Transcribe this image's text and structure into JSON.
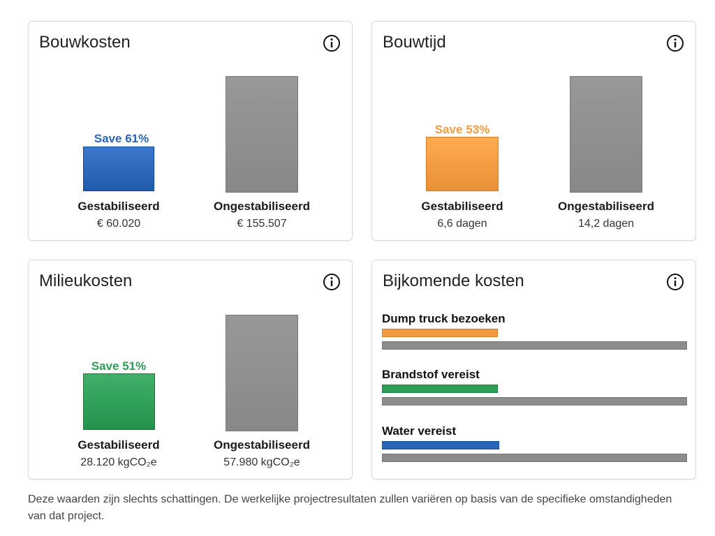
{
  "cards": {
    "bouwkosten": {
      "title": "Bouwkosten",
      "save_label": "Save 61%",
      "stabilized_label": "Gestabiliseerd",
      "stabilized_value": "€ 60.020",
      "unstabilized_label": "Ongestabiliseerd",
      "unstabilized_value": "€ 155.507",
      "accent_color": "#2b65b8",
      "stabilized_fraction": 0.386
    },
    "bouwtijd": {
      "title": "Bouwtijd",
      "save_label": "Save 53%",
      "stabilized_label": "Gestabiliseerd",
      "stabilized_value": "6,6 dagen",
      "unstabilized_label": "Ongestabiliseerd",
      "unstabilized_value": "14,2 dagen",
      "accent_color": "#f29a3f",
      "stabilized_fraction": 0.465
    },
    "milieukosten": {
      "title": "Milieukosten",
      "save_label": "Save 51%",
      "stabilized_label": "Gestabiliseerd",
      "stabilized_value": "28.120 kgCO₂e",
      "unstabilized_label": "Ongestabiliseerd",
      "unstabilized_value": "57.980 kgCO₂e",
      "accent_color": "#2e9d57",
      "stabilized_fraction": 0.485
    },
    "bijkomende": {
      "title": "Bijkomende kosten",
      "items": [
        {
          "label": "Dump truck bezoeken",
          "color": "#f29a3f",
          "stabilized_fraction": 0.38
        },
        {
          "label": "Brandstof vereist",
          "color": "#2e9d57",
          "stabilized_fraction": 0.38
        },
        {
          "label": "Water vereist",
          "color": "#2b65b8",
          "stabilized_fraction": 0.385
        }
      ]
    }
  },
  "icons": {
    "info": "info-circle-icon"
  },
  "colors": {
    "unstabilized_bar": "#8c8c8c"
  },
  "footnote": "Deze waarden zijn slechts schattingen. De werkelijke projectresultaten zullen variëren op basis van de specifieke omstandigheden van dat project."
}
